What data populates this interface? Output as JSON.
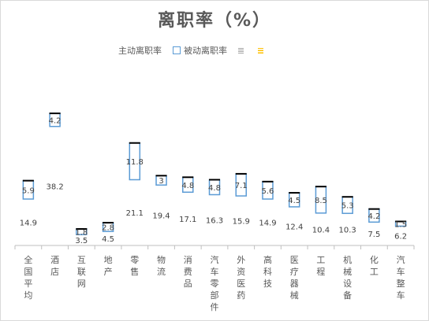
{
  "chart_data": {
    "type": "bar",
    "title": "离职率（%）",
    "legend": {
      "position": "top",
      "entries": [
        {
          "name": "主动离职率",
          "swatch": "none"
        },
        {
          "name": "被动离职率",
          "swatch": "outline",
          "color": "#5b9bd5"
        },
        {
          "name": "",
          "swatch": "gray",
          "color": "#a6a6a6"
        },
        {
          "name": "",
          "swatch": "yellow",
          "color": "#ffc000"
        }
      ]
    },
    "categories": [
      "全国平均",
      "酒店",
      "互联网",
      "地产",
      "零售",
      "物流",
      "消费品",
      "汽车零部件",
      "外资医药",
      "高科技",
      "医疗器械",
      "工程",
      "机械设备",
      "化工",
      "汽车整车"
    ],
    "series": [
      {
        "name": "主动离职率",
        "values": [
          14.9,
          38.2,
          3.5,
          4.5,
          21.1,
          19.4,
          17.1,
          16.3,
          15.9,
          14.9,
          12.4,
          10.4,
          10.3,
          7.5,
          6.2
        ]
      },
      {
        "name": "被动离职率",
        "values": [
          5.9,
          4.2,
          1.8,
          2.8,
          11.8,
          3,
          4.8,
          4.8,
          7.1,
          5.6,
          4.5,
          8.5,
          5.3,
          4.2,
          1.5
        ]
      }
    ],
    "colors": {
      "passive_border": "#5b9bd5",
      "cap": "#000000",
      "axis": "#bfbfbf",
      "text": "#404040"
    }
  }
}
